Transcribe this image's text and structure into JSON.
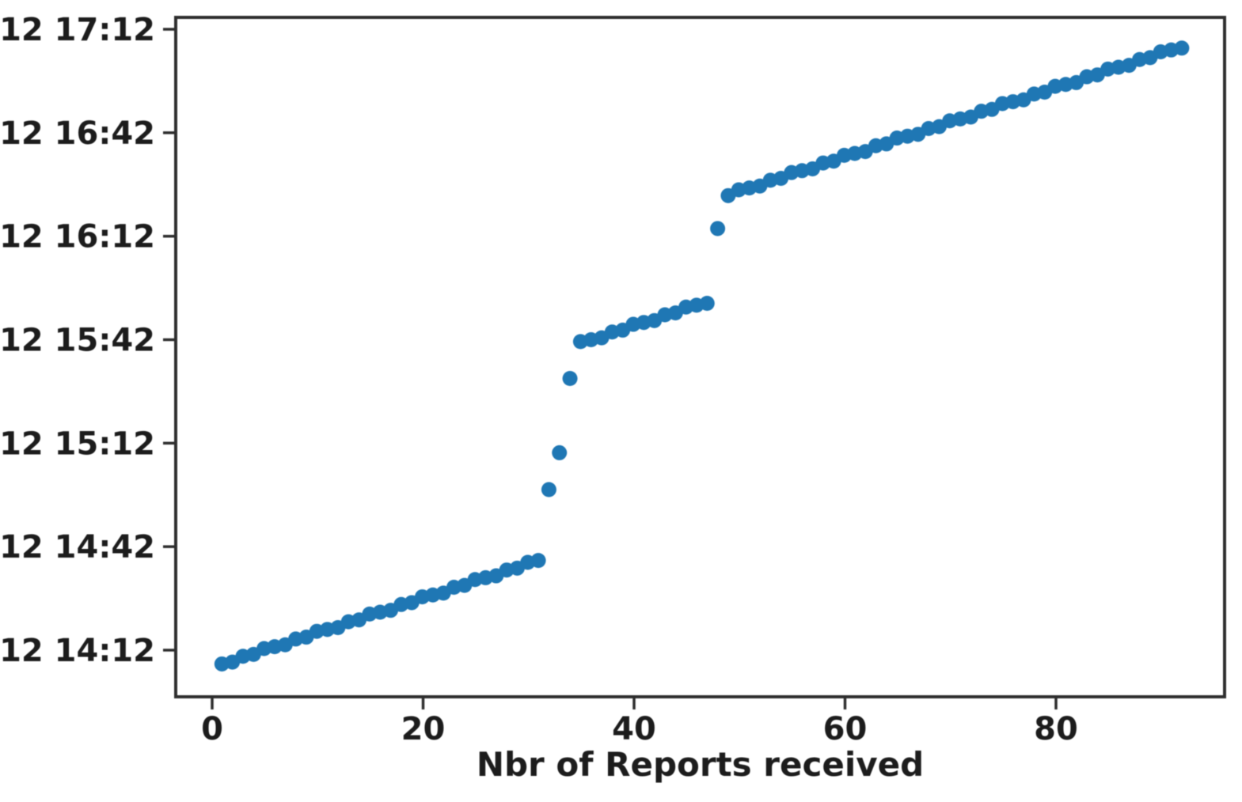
{
  "figure": {
    "background": "#ffffff",
    "spine_color": "#2e2e2e",
    "tick_color": "#2e2e2e",
    "text_color": "#1c1c1c"
  },
  "chart_data": {
    "type": "scatter",
    "title": "",
    "xlabel": "Nbr of Reports received",
    "ylabel": "",
    "marker_color": "#1f77b4",
    "legend": "none",
    "grid": false,
    "day_prefix": "12",
    "x_ticks": [
      0,
      20,
      40,
      60,
      80
    ],
    "y_ticks": [
      "12 17:12",
      "12 16:42",
      "12 16:12",
      "12 15:42",
      "12 15:12",
      "12 14:42",
      "12 14:12"
    ],
    "xlim": [
      -3.5,
      96
    ],
    "ylim_times": [
      "13:59",
      "17:15"
    ],
    "points": [
      {
        "x": 1,
        "t": "14:08"
      },
      {
        "x": 2,
        "t": "14:09"
      },
      {
        "x": 3,
        "t": "14:10"
      },
      {
        "x": 4,
        "t": "14:11"
      },
      {
        "x": 5,
        "t": "14:12"
      },
      {
        "x": 6,
        "t": "14:13"
      },
      {
        "x": 7,
        "t": "14:14"
      },
      {
        "x": 8,
        "t": "14:15"
      },
      {
        "x": 9,
        "t": "14:16"
      },
      {
        "x": 10,
        "t": "14:17"
      },
      {
        "x": 11,
        "t": "14:18"
      },
      {
        "x": 12,
        "t": "14:19"
      },
      {
        "x": 13,
        "t": "14:20"
      },
      {
        "x": 14,
        "t": "14:21"
      },
      {
        "x": 15,
        "t": "14:22"
      },
      {
        "x": 16,
        "t": "14:23"
      },
      {
        "x": 17,
        "t": "14:24"
      },
      {
        "x": 18,
        "t": "14:25"
      },
      {
        "x": 19,
        "t": "14:26"
      },
      {
        "x": 20,
        "t": "14:27"
      },
      {
        "x": 21,
        "t": "14:28"
      },
      {
        "x": 22,
        "t": "14:29"
      },
      {
        "x": 23,
        "t": "14:30"
      },
      {
        "x": 24,
        "t": "14:31"
      },
      {
        "x": 25,
        "t": "14:32"
      },
      {
        "x": 26,
        "t": "14:33"
      },
      {
        "x": 27,
        "t": "14:34"
      },
      {
        "x": 28,
        "t": "14:35"
      },
      {
        "x": 29,
        "t": "14:36"
      },
      {
        "x": 30,
        "t": "14:37"
      },
      {
        "x": 31,
        "t": "14:38"
      },
      {
        "x": 32,
        "t": "14:59"
      },
      {
        "x": 33,
        "t": "15:09"
      },
      {
        "x": 34,
        "t": "15:31"
      },
      {
        "x": 35,
        "t": "15:41"
      },
      {
        "x": 36,
        "t": "15:42"
      },
      {
        "x": 37,
        "t": "15:43"
      },
      {
        "x": 38,
        "t": "15:44"
      },
      {
        "x": 39,
        "t": "15:45"
      },
      {
        "x": 40,
        "t": "15:46"
      },
      {
        "x": 41,
        "t": "15:47"
      },
      {
        "x": 42,
        "t": "15:48"
      },
      {
        "x": 43,
        "t": "15:49"
      },
      {
        "x": 44,
        "t": "15:50"
      },
      {
        "x": 45,
        "t": "15:51"
      },
      {
        "x": 46,
        "t": "15:52"
      },
      {
        "x": 47,
        "t": "15:53"
      },
      {
        "x": 48,
        "t": "16:14"
      },
      {
        "x": 49,
        "t": "16:24"
      },
      {
        "x": 50,
        "t": "16:25"
      },
      {
        "x": 51,
        "t": "16:26"
      },
      {
        "x": 52,
        "t": "16:27"
      },
      {
        "x": 53,
        "t": "16:28"
      },
      {
        "x": 54,
        "t": "16:29"
      },
      {
        "x": 55,
        "t": "16:30"
      },
      {
        "x": 56,
        "t": "16:31"
      },
      {
        "x": 57,
        "t": "16:32"
      },
      {
        "x": 58,
        "t": "16:33"
      },
      {
        "x": 59,
        "t": "16:34"
      },
      {
        "x": 60,
        "t": "16:35"
      },
      {
        "x": 61,
        "t": "16:36"
      },
      {
        "x": 62,
        "t": "16:37"
      },
      {
        "x": 63,
        "t": "16:38"
      },
      {
        "x": 64,
        "t": "16:39"
      },
      {
        "x": 65,
        "t": "16:40"
      },
      {
        "x": 66,
        "t": "16:41"
      },
      {
        "x": 67,
        "t": "16:42"
      },
      {
        "x": 68,
        "t": "16:43"
      },
      {
        "x": 69,
        "t": "16:44"
      },
      {
        "x": 70,
        "t": "16:45"
      },
      {
        "x": 71,
        "t": "16:46"
      },
      {
        "x": 72,
        "t": "16:47"
      },
      {
        "x": 73,
        "t": "16:48"
      },
      {
        "x": 74,
        "t": "16:49"
      },
      {
        "x": 75,
        "t": "16:50"
      },
      {
        "x": 76,
        "t": "16:51"
      },
      {
        "x": 77,
        "t": "16:52"
      },
      {
        "x": 78,
        "t": "16:53"
      },
      {
        "x": 79,
        "t": "16:54"
      },
      {
        "x": 80,
        "t": "16:55"
      },
      {
        "x": 81,
        "t": "16:56"
      },
      {
        "x": 82,
        "t": "16:57"
      },
      {
        "x": 83,
        "t": "16:58"
      },
      {
        "x": 84,
        "t": "16:59"
      },
      {
        "x": 85,
        "t": "17:00"
      },
      {
        "x": 86,
        "t": "17:01"
      },
      {
        "x": 87,
        "t": "17:02"
      },
      {
        "x": 88,
        "t": "17:03"
      },
      {
        "x": 89,
        "t": "17:04"
      },
      {
        "x": 90,
        "t": "17:05"
      },
      {
        "x": 91,
        "t": "17:06"
      },
      {
        "x": 92,
        "t": "17:07"
      }
    ]
  }
}
